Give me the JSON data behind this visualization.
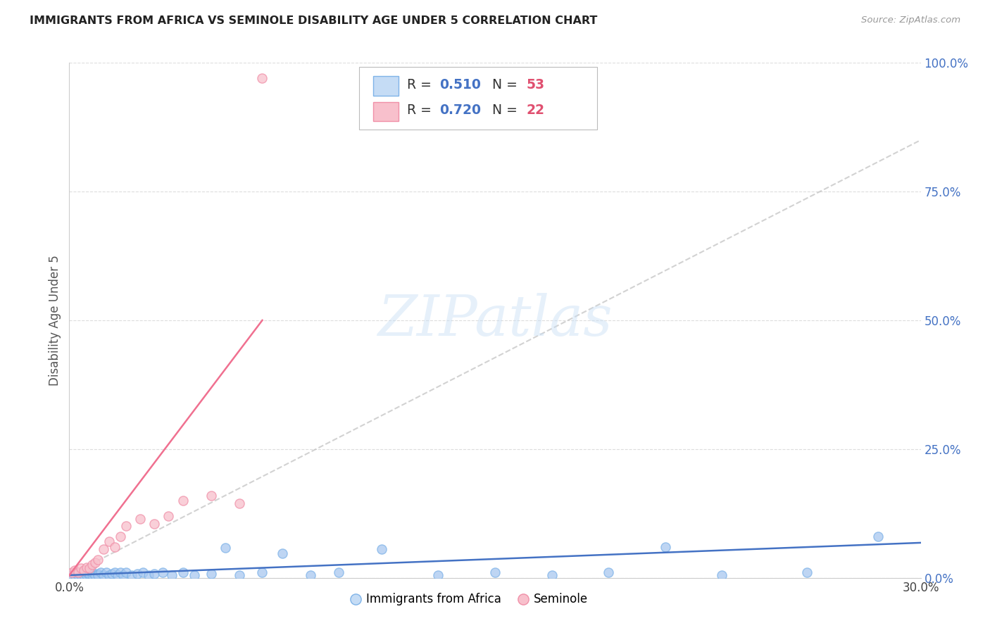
{
  "title": "IMMIGRANTS FROM AFRICA VS SEMINOLE DISABILITY AGE UNDER 5 CORRELATION CHART",
  "source": "Source: ZipAtlas.com",
  "ylabel": "Disability Age Under 5",
  "xlim": [
    0.0,
    0.3
  ],
  "ylim": [
    0.0,
    1.0
  ],
  "grid_color": "#dddddd",
  "background_color": "#ffffff",
  "watermark_text": "ZIPatlas",
  "blue_series": {
    "name": "Immigrants from Africa",
    "marker_color": "#a8c8f0",
    "marker_edge": "#7fb3e8",
    "R": 0.51,
    "N": 53,
    "x": [
      0.001,
      0.002,
      0.002,
      0.003,
      0.003,
      0.004,
      0.004,
      0.005,
      0.005,
      0.006,
      0.006,
      0.007,
      0.007,
      0.008,
      0.008,
      0.009,
      0.01,
      0.01,
      0.011,
      0.012,
      0.013,
      0.014,
      0.015,
      0.016,
      0.017,
      0.018,
      0.019,
      0.02,
      0.022,
      0.024,
      0.026,
      0.028,
      0.03,
      0.033,
      0.036,
      0.04,
      0.044,
      0.05,
      0.055,
      0.06,
      0.068,
      0.075,
      0.085,
      0.095,
      0.11,
      0.13,
      0.15,
      0.17,
      0.19,
      0.21,
      0.23,
      0.26,
      0.285
    ],
    "y": [
      0.005,
      0.005,
      0.01,
      0.005,
      0.01,
      0.005,
      0.01,
      0.005,
      0.01,
      0.005,
      0.01,
      0.005,
      0.008,
      0.005,
      0.01,
      0.005,
      0.008,
      0.005,
      0.01,
      0.005,
      0.01,
      0.005,
      0.008,
      0.01,
      0.005,
      0.01,
      0.005,
      0.01,
      0.005,
      0.008,
      0.01,
      0.005,
      0.008,
      0.01,
      0.005,
      0.01,
      0.005,
      0.008,
      0.058,
      0.005,
      0.01,
      0.048,
      0.005,
      0.01,
      0.055,
      0.005,
      0.01,
      0.005,
      0.01,
      0.06,
      0.005,
      0.01,
      0.08
    ],
    "trend_color": "#4472c4",
    "trend_x0": 0.0,
    "trend_x1": 0.3,
    "trend_y0": 0.005,
    "trend_y1": 0.068,
    "trend_style": "solid"
  },
  "pink_series": {
    "name": "Seminole",
    "marker_color": "#f8c0cc",
    "marker_edge": "#f090a8",
    "R": 0.72,
    "N": 22,
    "x": [
      0.001,
      0.002,
      0.003,
      0.004,
      0.005,
      0.006,
      0.007,
      0.008,
      0.009,
      0.01,
      0.012,
      0.014,
      0.016,
      0.018,
      0.02,
      0.025,
      0.03,
      0.035,
      0.04,
      0.05,
      0.06,
      0.068
    ],
    "y": [
      0.01,
      0.015,
      0.01,
      0.018,
      0.015,
      0.02,
      0.018,
      0.025,
      0.03,
      0.035,
      0.055,
      0.07,
      0.06,
      0.08,
      0.1,
      0.115,
      0.105,
      0.12,
      0.15,
      0.16,
      0.145,
      0.97
    ],
    "trend_color": "#f07090",
    "trend_x0": 0.0,
    "trend_x1": 0.068,
    "trend_y0": 0.005,
    "trend_y1": 0.5,
    "trend_ext_x1": 0.3,
    "trend_ext_y1": 0.85,
    "trend_style": "solid",
    "trend_ext_style": "dashed"
  },
  "legend_R_color": "#4472c4",
  "legend_N_color": "#e05070",
  "title_color": "#222222",
  "right_axis_color": "#4472c4",
  "yticks": [
    0.0,
    0.25,
    0.5,
    0.75,
    1.0
  ],
  "ytick_labels": [
    "0.0%",
    "25.0%",
    "50.0%",
    "75.0%",
    "100.0%"
  ]
}
